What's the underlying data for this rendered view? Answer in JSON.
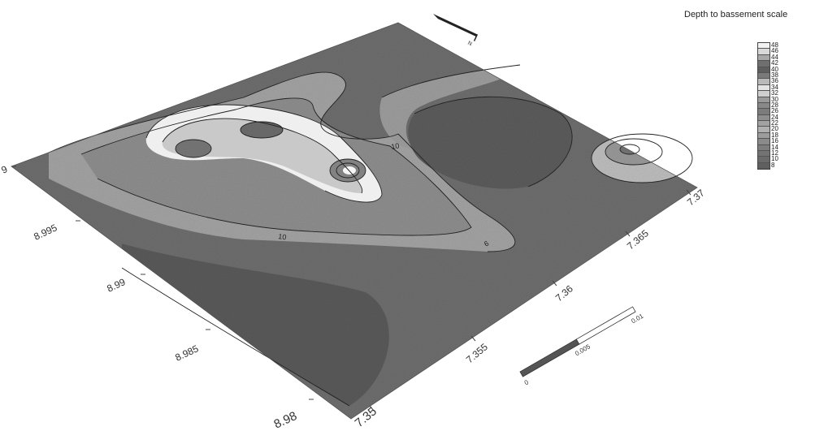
{
  "map": {
    "x_axis": {
      "ticks": [
        "7.35",
        "7.355",
        "7.36",
        "7.365",
        "7.37"
      ]
    },
    "y_axis": {
      "ticks": [
        "8.98",
        "8.985",
        "8.99",
        "8.995",
        "9"
      ]
    },
    "contour_labels": [
      "10",
      "10",
      "6"
    ],
    "scale_bar": {
      "labels": [
        "0",
        "0.005",
        "0.01"
      ]
    },
    "north_arrow": {
      "label": "N",
      "icon": "north-arrow-icon"
    }
  },
  "legend": {
    "title": "Depth to bassement scale",
    "levels": [
      "48",
      "46",
      "44",
      "42",
      "40",
      "38",
      "36",
      "34",
      "32",
      "30",
      "28",
      "26",
      "24",
      "22",
      "20",
      "18",
      "16",
      "14",
      "12",
      "10",
      "8"
    ],
    "colors": [
      "#f2f2f2",
      "#d9d9d9",
      "#a8a8a8",
      "#6f6f6f",
      "#5e5e5e",
      "#7a7a7a",
      "#b9b9b9",
      "#e3e3e3",
      "#cfcfcf",
      "#9a9a9a",
      "#888888",
      "#7c7c7c",
      "#8e8e8e",
      "#a2a2a2",
      "#b0b0b0",
      "#9c9c9c",
      "#8a8a8a",
      "#7d7d7d",
      "#737373",
      "#6a6a6a",
      "#606060"
    ]
  }
}
